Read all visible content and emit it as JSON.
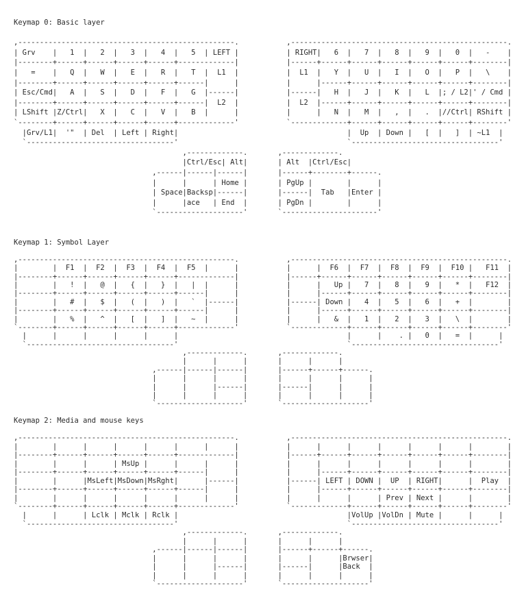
{
  "keymaps": [
    {
      "title": "Keymap 0: Basic layer",
      "main": [
        [
          ",--------------------------------------------------.",
          ",--------------------------------------------------."
        ],
        [
          "| Grv    |   1  |   2  |   3  |   4  |   5  | LEFT |",
          "| RIGHT|   6  |   7  |   8  |   9  |   0  |   -    |"
        ],
        [
          "|--------+------+------+------+------+-------------|",
          "|------+------+------+------+------+------+--------|"
        ],
        [
          "|   =    |   Q  |   W  |   E  |   R  |   T  |  L1  |",
          "|  L1  |   Y  |   U  |   I  |   O  |   P  |   \\    |"
        ],
        [
          "|--------+------+------+------+------+------|      |",
          "|      |------+------+------+------+------+--------|"
        ],
        [
          "| Esc/Cmd|   A  |   S  |   D  |   F  |   G  |------|",
          "|------|   H  |   J  |   K  |   L  |; / L2|' / Cmd |"
        ],
        [
          "|--------+------+------+------+------+------|  L2  |",
          "|  L2  |------+------+------+------+------+--------|"
        ],
        [
          "| LShift |Z/Ctrl|   X  |   C  |   V  |   B  |      |",
          "|      |   N  |   M  |   ,  |   .  |//Ctrl| RShift |"
        ],
        [
          "`--------+------+------+------+------+-------------'",
          "`-------------+------+------+------+------+--------'"
        ]
      ],
      "bottom": [
        [
          "  |Grv/L1|  '\"  | Del  | Left | Right|",
          "|  Up  | Down |   [  |   ]  | ~L1  |"
        ],
        [
          "  `----------------------------------'",
          "`----------------------------------'"
        ]
      ],
      "thumb": [
        [
          "       ,-------------.",
          ",-------------."
        ],
        [
          "       |Ctrl/Esc| Alt|",
          "| Alt  |Ctrl/Esc|"
        ],
        [
          ",------|------|------|",
          "|------+--------+------."
        ],
        [
          "|      |      | Home |",
          "| PgUp |        |      |"
        ],
        [
          "| Space|Backsp|------|",
          "|------|  Tab   |Enter |"
        ],
        [
          "|      |ace   | End  |",
          "| PgDn |        |      |"
        ],
        [
          "`--------------------'",
          "`----------------------'"
        ]
      ]
    },
    {
      "title": "Keymap 1: Symbol Layer",
      "main": [
        [
          ",--------------------------------------------------.",
          ",--------------------------------------------------."
        ],
        [
          "|        |  F1  |  F2  |  F3  |  F4  |  F5  |      |",
          "|      |  F6  |  F7  |  F8  |  F9  |  F10 |   F11  |"
        ],
        [
          "|--------+------+------+------+------+-------------|",
          "|------+------+------+------+------+------+--------|"
        ],
        [
          "|        |   !  |   @  |   {  |   }  |   |  |      |",
          "|      |   Up |   7  |   8  |   9  |   *  |   F12  |"
        ],
        [
          "|--------+------+------+------+------+------|      |",
          "|      |------+------+------+------+------+--------|"
        ],
        [
          "|        |   #  |   $  |   (  |   )  |   `  |------|",
          "|------| Down |   4  |   5  |   6  |   +  |        |"
        ],
        [
          "|--------+------+------+------+------+------|      |",
          "|      |------+------+------+------+------+--------|"
        ],
        [
          "|        |   %  |   ^  |   [  |   ]  |   ~  |      |",
          "|      |   &  |   1  |   2  |   3  |   \\  |        |"
        ],
        [
          "`--------+------+------+------+------+-------------'",
          "`-------------+------+------+------+------+--------'"
        ]
      ],
      "bottom": [
        [
          "  |      |      |      |      |      |",
          "|      |    . |   0  |   =  |      |"
        ],
        [
          "  `----------------------------------'",
          "`----------------------------------'"
        ]
      ],
      "thumb": [
        [
          "       ,-------------.",
          ",-------------."
        ],
        [
          "       |      |      |",
          "|      |      |"
        ],
        [
          ",------|------|------|",
          "|------+------+------."
        ],
        [
          "|      |      |      |",
          "|      |      |      |"
        ],
        [
          "|      |      |------|",
          "|------|      |      |"
        ],
        [
          "|      |      |      |",
          "|      |      |      |"
        ],
        [
          "`--------------------'",
          "`--------------------'"
        ]
      ]
    },
    {
      "title": "Keymap 2: Media and mouse keys",
      "main": [
        [
          ",--------------------------------------------------.",
          ",--------------------------------------------------."
        ],
        [
          "|        |      |      |      |      |      |      |",
          "|      |      |      |      |      |      |        |"
        ],
        [
          "|--------+------+------+------+------+-------------|",
          "|------+------+------+------+------+------+--------|"
        ],
        [
          "|        |      |      | MsUp |      |      |      |",
          "|      |      |      |      |      |      |        |"
        ],
        [
          "|--------+------+------+------+------+------|      |",
          "|      |------+------+------+------+------+--------|"
        ],
        [
          "|        |      |MsLeft|MsDown|MsRght|      |------|",
          "|------| LEFT | DOWN |  UP  | RIGHT|      |  Play  |"
        ],
        [
          "|--------+------+------+------+------+------|      |",
          "|      |------+------+------+------+------+--------|"
        ],
        [
          "|        |      |      |      |      |      |      |",
          "|      |      |      | Prev | Next |      |        |"
        ],
        [
          "`--------+------+------+------+------+-------------'",
          "`-------------+------+------+------+------+--------'"
        ]
      ],
      "bottom": [
        [
          "  |      |      | Lclk | Mclk | Rclk |",
          "|VolUp |VolDn | Mute |      |      |"
        ],
        [
          "  `----------------------------------'",
          "`----------------------------------'"
        ]
      ],
      "thumb": [
        [
          "       ,-------------.",
          ",-------------."
        ],
        [
          "       |      |      |",
          "|      |      |"
        ],
        [
          ",------|------|------|",
          "|------+------+------."
        ],
        [
          "|      |      |      |",
          "|      |      |Brwser|"
        ],
        [
          "|      |      |------|",
          "|------|      |Back  |"
        ],
        [
          "|      |      |      |",
          "|      |      |      |"
        ],
        [
          "`--------------------'",
          "`--------------------'"
        ]
      ]
    }
  ]
}
